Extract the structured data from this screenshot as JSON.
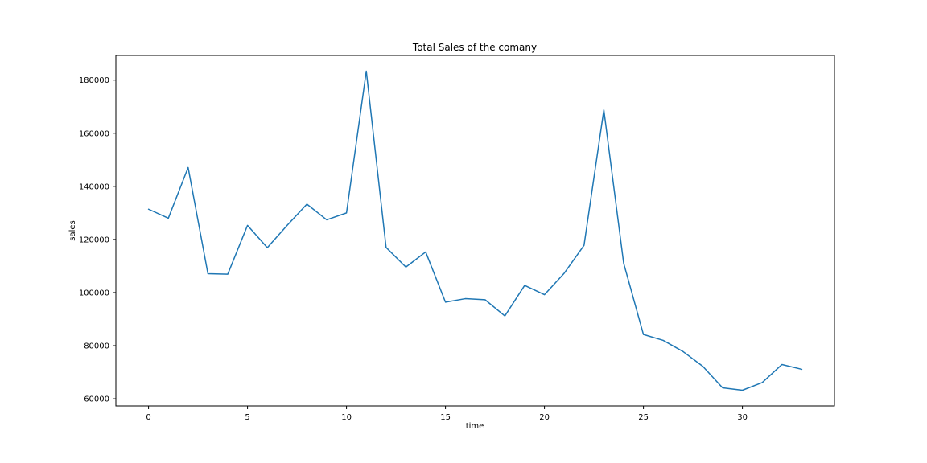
{
  "chart_data": {
    "type": "line",
    "title": "Total Sales of the comany",
    "xlabel": "time",
    "ylabel": "sales",
    "xlim": [
      -1.65,
      34.65
    ],
    "ylim": [
      57300,
      189300
    ],
    "xticks": [
      0,
      5,
      10,
      15,
      20,
      25,
      30
    ],
    "yticks": [
      60000,
      80000,
      100000,
      120000,
      140000,
      160000,
      180000
    ],
    "grid": false,
    "legend": false,
    "series": [
      {
        "color": "#1f77b4",
        "x": [
          0,
          1,
          2,
          3,
          4,
          5,
          6,
          7,
          8,
          9,
          10,
          11,
          12,
          13,
          14,
          15,
          16,
          17,
          18,
          19,
          20,
          21,
          22,
          23,
          24,
          25,
          26,
          27,
          28,
          29,
          30,
          31,
          32,
          33
        ],
        "values": [
          131400,
          128000,
          147100,
          107100,
          106900,
          125300,
          116900,
          125300,
          133300,
          127400,
          130000,
          183400,
          117000,
          109600,
          115300,
          96400,
          97700,
          97300,
          91200,
          102700,
          99200,
          107300,
          117800,
          168800,
          111100,
          84200,
          82000,
          77800,
          72200,
          64100,
          63200,
          66100,
          72900,
          71100
        ]
      }
    ]
  }
}
